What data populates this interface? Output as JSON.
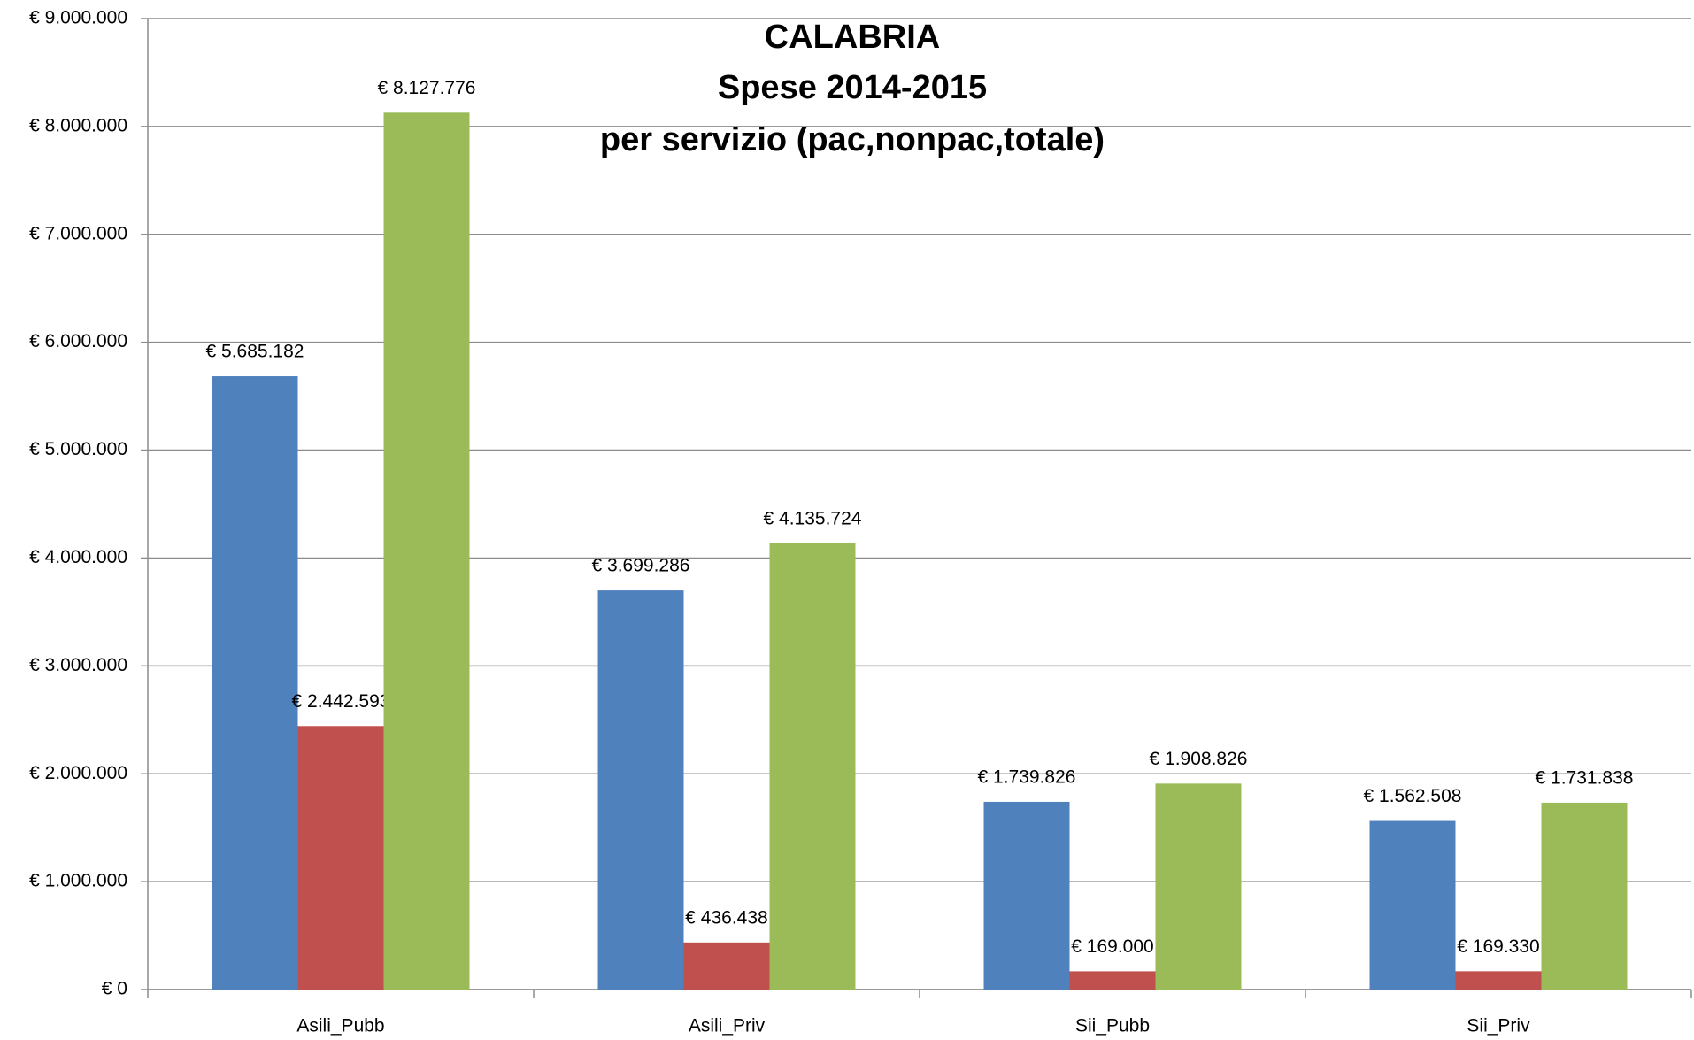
{
  "chart_data": {
    "type": "bar",
    "title": [
      "CALABRIA",
      "Spese 2014-2015",
      "per servizio (pac,nonpac,totale)"
    ],
    "categories": [
      "Asili_Pubb",
      "Asili_Priv",
      "Sii_Pubb",
      "Sii_Priv"
    ],
    "series": [
      {
        "color": "#4f81bd",
        "values": [
          5685182,
          3699286,
          1739826,
          1562508
        ],
        "value_labels": [
          "€ 5.685.182",
          "€ 3.699.286",
          "€ 1.739.826",
          "€ 1.562.508"
        ]
      },
      {
        "color": "#c0504d",
        "values": [
          2442593,
          436438,
          169000,
          169330
        ],
        "value_labels": [
          "€ 2.442.593",
          "€ 436.438",
          "€ 169.000",
          "€ 169.330"
        ]
      },
      {
        "color": "#9bbb59",
        "values": [
          8127776,
          4135724,
          1908826,
          1731838
        ],
        "value_labels": [
          "€ 8.127.776",
          "€ 4.135.724",
          "€ 1.908.826",
          "€ 1.731.838"
        ]
      }
    ],
    "ylim": [
      0,
      9000000
    ],
    "yticks": [
      {
        "value": 0,
        "label": "€ 0"
      },
      {
        "value": 1000000,
        "label": "€ 1.000.000"
      },
      {
        "value": 2000000,
        "label": "€ 2.000.000"
      },
      {
        "value": 3000000,
        "label": "€ 3.000.000"
      },
      {
        "value": 4000000,
        "label": "€ 4.000.000"
      },
      {
        "value": 5000000,
        "label": "€ 5.000.000"
      },
      {
        "value": 6000000,
        "label": "€ 6.000.000"
      },
      {
        "value": 7000000,
        "label": "€ 7.000.000"
      },
      {
        "value": 8000000,
        "label": "€ 8.000.000"
      },
      {
        "value": 9000000,
        "label": "€ 9.000.000"
      }
    ],
    "grid": true
  }
}
